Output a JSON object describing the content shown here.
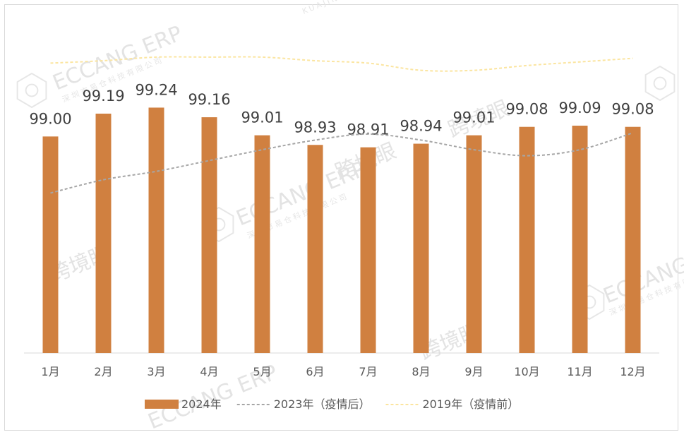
{
  "chart_data": {
    "type": "bar",
    "categories": [
      "1月",
      "2月",
      "3月",
      "4月",
      "5月",
      "6月",
      "7月",
      "8月",
      "9月",
      "10月",
      "11月",
      "12月"
    ],
    "series": [
      {
        "name": "2024年",
        "type": "bar",
        "color": "#d08040",
        "values": [
          99.0,
          99.19,
          99.24,
          99.16,
          99.01,
          98.93,
          98.91,
          98.94,
          99.01,
          99.08,
          99.09,
          99.08
        ]
      },
      {
        "name": "2023年（疫情后）",
        "type": "line",
        "style": "dashed",
        "color": "#a6a6a6",
        "values": [
          98.53,
          98.64,
          98.71,
          98.8,
          98.89,
          98.97,
          99.02,
          98.97,
          98.89,
          98.84,
          98.89,
          99.03
        ]
      },
      {
        "name": "2019年（疫情前）",
        "type": "line",
        "style": "dashed",
        "color": "#fbe5a0",
        "values": [
          99.61,
          99.63,
          99.66,
          99.66,
          99.66,
          99.63,
          99.61,
          99.55,
          99.55,
          99.59,
          99.62,
          99.65
        ]
      }
    ],
    "data_labels": [
      "99.00",
      "99.19",
      "99.24",
      "99.16",
      "99.01",
      "98.93",
      "98.91",
      "98.94",
      "99.01",
      "99.08",
      "99.09",
      "99.08"
    ],
    "ylim": [
      97.2,
      99.9
    ],
    "grid": false,
    "legend_position": "bottom",
    "title": "",
    "xlabel": "",
    "ylabel": ""
  },
  "watermarks": [
    "ECCANG ERP",
    "深圳市易仓科技有限公司",
    "跨境眼",
    "KUAJINGYAN.COM"
  ]
}
